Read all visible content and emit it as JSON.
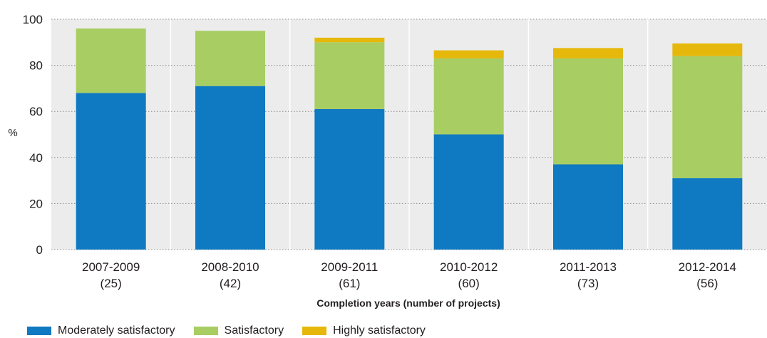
{
  "chart_data": {
    "type": "bar",
    "stacked": true,
    "categories": [
      "2007-2009",
      "2008-2010",
      "2009-2011",
      "2010-2012",
      "2011-2013",
      "2012-2014"
    ],
    "category_counts": [
      "(25)",
      "(42)",
      "(61)",
      "(60)",
      "(73)",
      "(56)"
    ],
    "series": [
      {
        "name": "Moderately satisfactory",
        "color": "#0f79c1",
        "values": [
          68,
          71,
          61,
          50,
          37,
          31
        ]
      },
      {
        "name": "Satisfactory",
        "color": "#a8cd63",
        "values": [
          28,
          24,
          29,
          33,
          46,
          53
        ]
      },
      {
        "name": "Highly satisfactory",
        "color": "#e5b80b",
        "values": [
          0,
          0,
          2,
          3.5,
          4.5,
          5.5
        ]
      }
    ],
    "xlabel": "Completion years (number of projects)",
    "ylabel": "%",
    "ylim": [
      0,
      100
    ],
    "yticks": [
      "0",
      "20",
      "40",
      "60",
      "80",
      "100"
    ],
    "grid": true,
    "legend_position": "bottom-left",
    "plot_background": "#ececec"
  }
}
